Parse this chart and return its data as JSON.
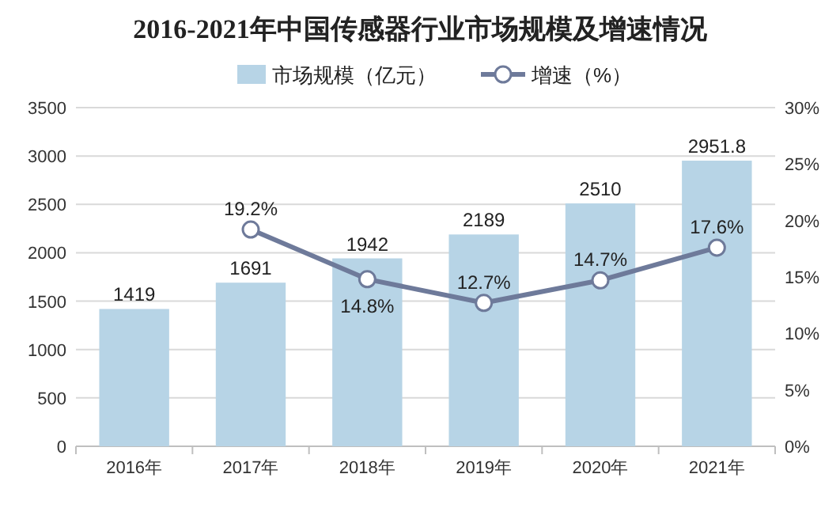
{
  "chart_data": {
    "type": "bar",
    "title": "2016-2021年中国传感器行业市场规模及增速情况",
    "categories": [
      "2016年",
      "2017年",
      "2018年",
      "2019年",
      "2020年",
      "2021年"
    ],
    "series": [
      {
        "name": "市场规模（亿元）",
        "color": "#b7d4e6",
        "values": [
          1419,
          1691,
          1942,
          2189,
          2510,
          2951.8
        ],
        "value_labels": [
          "1419",
          "1691",
          "1942",
          "2189",
          "2510",
          "2951.8"
        ]
      },
      {
        "name": "增速（%）",
        "type": "line",
        "axis": "y2",
        "color": "#6e7a9a",
        "marker": "circle",
        "values": [
          null,
          19.2,
          14.8,
          12.7,
          14.7,
          17.6
        ],
        "value_labels": [
          null,
          "19.2%",
          "14.8%",
          "12.7%",
          "14.7%",
          "17.6%"
        ]
      }
    ],
    "ylim": [
      0,
      3500
    ],
    "yticks": [
      0,
      500,
      1000,
      1500,
      2000,
      2500,
      3000,
      3500
    ],
    "y2lim": [
      0,
      30
    ],
    "y2ticks": [
      {
        "value": 0,
        "label": "0%"
      },
      {
        "value": 5,
        "label": "5%"
      },
      {
        "value": 10,
        "label": "10%"
      },
      {
        "value": 15,
        "label": "15%"
      },
      {
        "value": 20,
        "label": "20%"
      },
      {
        "value": 25,
        "label": "25%"
      },
      {
        "value": 30,
        "label": "30%"
      }
    ],
    "grid": "y",
    "legend": "top"
  }
}
